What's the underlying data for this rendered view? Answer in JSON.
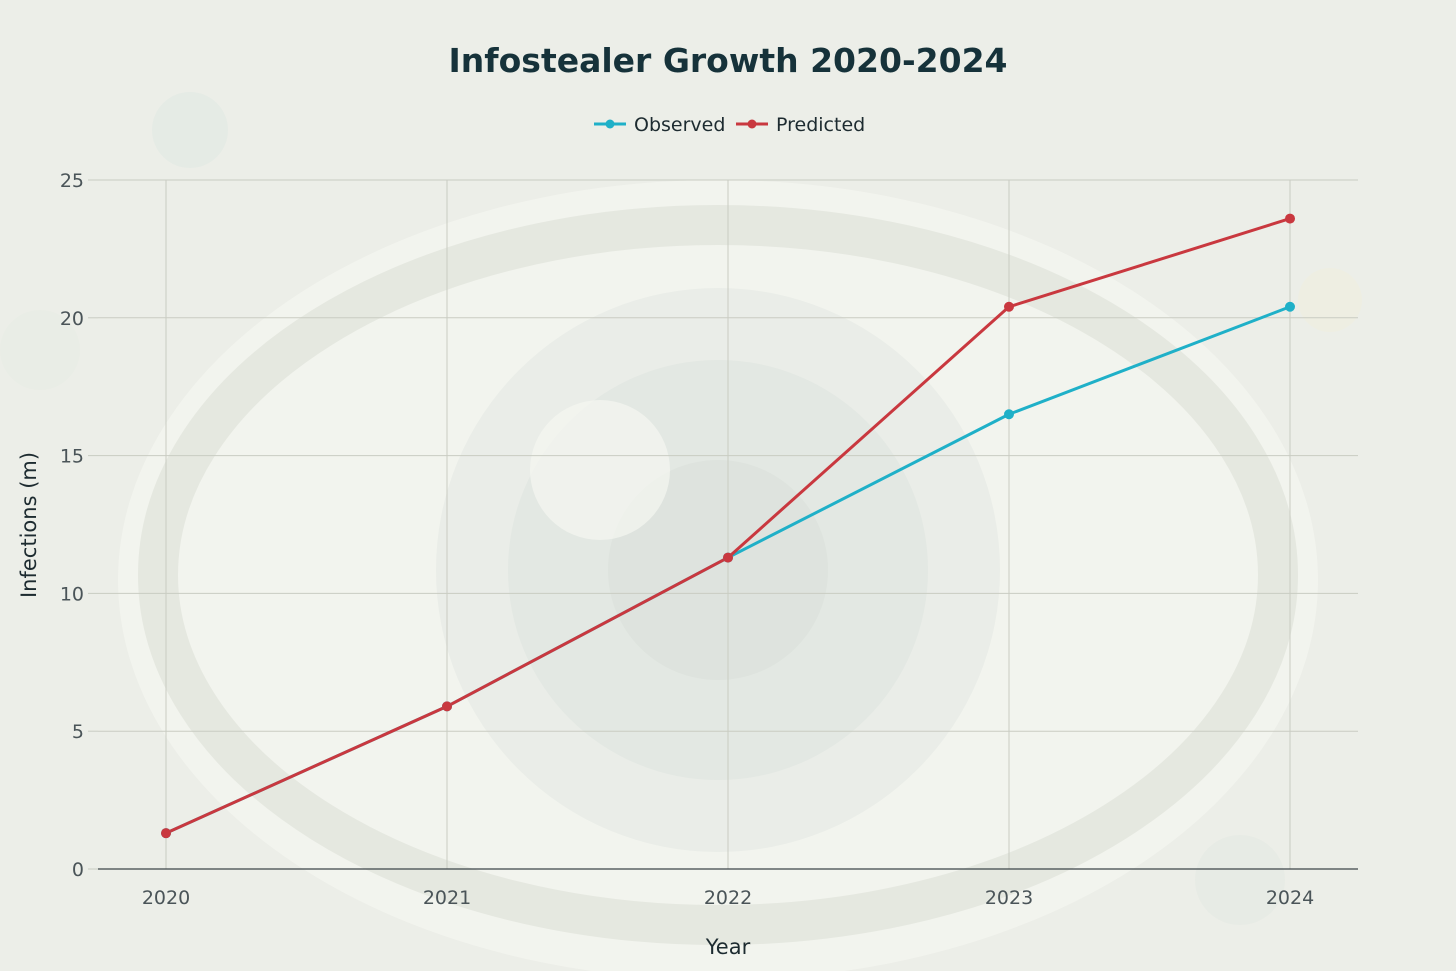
{
  "chart_data": {
    "type": "line",
    "title": "Infostealer Growth 2020-2024",
    "xlabel": "Year",
    "ylabel": "Infections (m)",
    "categories": [
      "2020",
      "2021",
      "2022",
      "2023",
      "2024"
    ],
    "ylim": [
      0,
      25
    ],
    "yticks": [
      0,
      5,
      10,
      15,
      20,
      25
    ],
    "grid": true,
    "legend_position": "top-center",
    "series": [
      {
        "name": "Observed",
        "color": "#1fb0c8",
        "values": [
          1.3,
          5.9,
          11.3,
          16.5,
          20.4
        ]
      },
      {
        "name": "Predicted",
        "color": "#c9383f",
        "values": [
          1.3,
          5.9,
          11.3,
          20.4,
          23.6
        ]
      }
    ]
  },
  "colors": {
    "background": "#eceee8",
    "plot_background": "#f2f3ed",
    "grid": "#c9ccc2",
    "axis": "#3c4448"
  }
}
